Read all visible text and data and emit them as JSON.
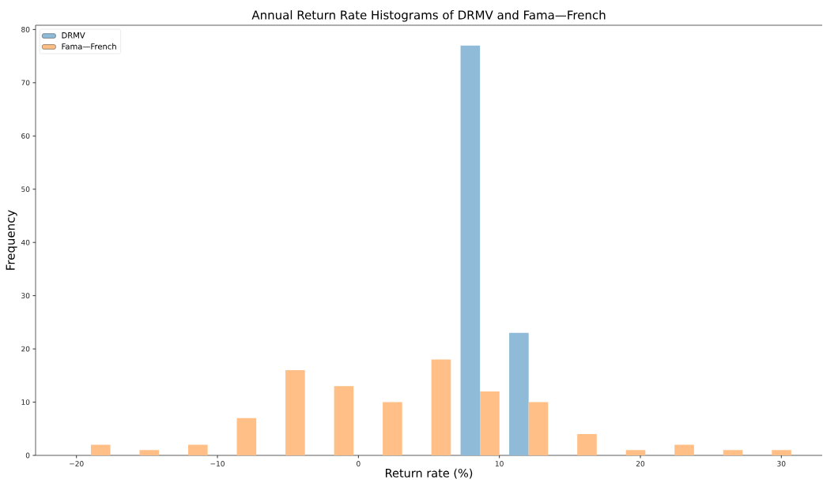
{
  "chart_data": {
    "type": "histogram",
    "title": "Annual Return Rate Histograms of DRMV and Fama—French",
    "xlabel": "Return rate (%)",
    "ylabel": "Frequency",
    "bins": [
      -20.7,
      -17.25,
      -13.8,
      -10.35,
      -6.9,
      -3.45,
      0.0,
      3.45,
      6.9,
      10.35,
      13.8,
      17.25,
      20.7,
      24.15,
      27.6,
      31.05
    ],
    "series": [
      {
        "name": "DRMV",
        "color": "#8fbbd9",
        "values": [
          0,
          0,
          0,
          0,
          0,
          0,
          0,
          0,
          77,
          23,
          0,
          0,
          0,
          0,
          0
        ]
      },
      {
        "name": "Fama—French",
        "color": "#ffbf86",
        "values": [
          2,
          1,
          2,
          7,
          16,
          13,
          10,
          18,
          12,
          10,
          4,
          1,
          2,
          1,
          1
        ]
      }
    ],
    "xlim": [
      -22.9,
      32.9
    ],
    "ylim": [
      0,
      80.8
    ],
    "xticks": [
      {
        "value": -20,
        "label": "−20"
      },
      {
        "value": -10,
        "label": "−10"
      },
      0,
      10,
      20,
      30
    ],
    "yticks": [
      0,
      10,
      20,
      30,
      40,
      50,
      60,
      70,
      80
    ],
    "legend": "top left"
  }
}
